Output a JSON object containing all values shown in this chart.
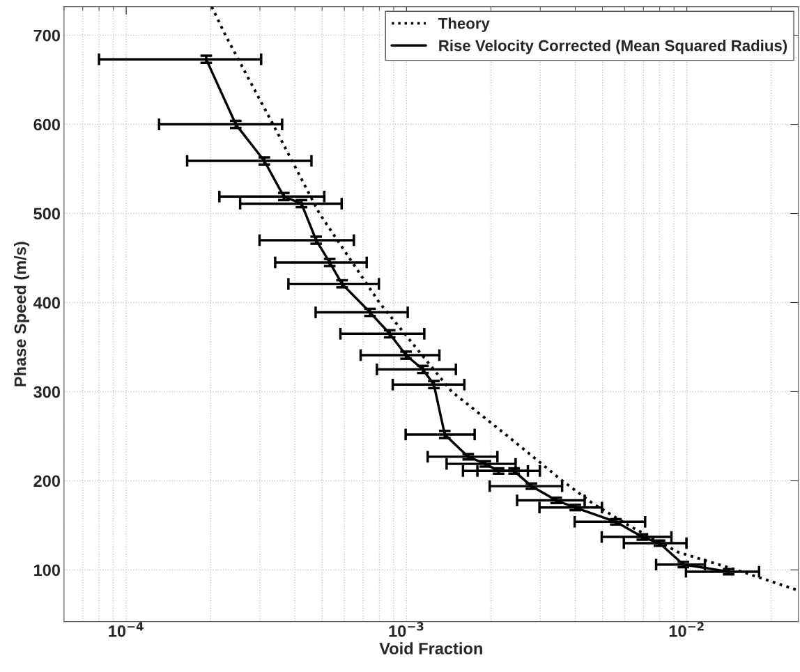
{
  "chart_data": {
    "type": "line",
    "xlabel": "Void Fraction",
    "ylabel": "Phase Speed (m/s)",
    "log": "x",
    "xlim": [
      6e-05,
      0.025
    ],
    "ylim": [
      42,
      732
    ],
    "xticks": [
      {
        "value": 0.0001,
        "label": "10$^{−4}$"
      },
      {
        "value": 0.001,
        "label": "10$^{−3}$"
      },
      {
        "value": 0.01,
        "label": "10$^{−2}$"
      }
    ],
    "yticks": [
      100,
      200,
      300,
      400,
      500,
      600,
      700
    ],
    "grid": true,
    "legend": "top right",
    "marker": "none",
    "series": [
      {
        "name": "Theory",
        "line_style": "dotted",
        "color": "#000000",
        "x": [
          0.000202,
          0.000226,
          0.000334,
          0.000489,
          0.0008,
          0.00145,
          0.0023,
          0.0036,
          0.0046,
          0.0062,
          0.0093,
          0.015,
          0.025
        ],
        "values": [
          732,
          700,
          600,
          500,
          400,
          300,
          250,
          200,
          175,
          150,
          120,
          100,
          77
        ]
      },
      {
        "name": "Rise Velocity Corrected (Mean Squared Radius)",
        "line_style": "solid",
        "color": "#000000",
        "x": [
          0.000193,
          0.000246,
          0.000311,
          0.000365,
          0.000422,
          0.000476,
          0.000532,
          0.000589,
          0.000741,
          0.000871,
          0.000996,
          0.001144,
          0.001252,
          0.001369,
          0.00166,
          0.00191,
          0.00213,
          0.00242,
          0.00279,
          0.00342,
          0.004,
          0.00558,
          0.00694,
          0.00799,
          0.00972,
          0.0141
        ],
        "values": [
          673,
          600,
          559,
          519,
          511,
          470,
          445,
          421,
          389,
          365,
          341,
          325,
          308,
          252,
          227,
          219,
          211,
          211,
          194,
          178,
          170,
          154,
          137,
          130,
          106,
          98
        ],
        "xerrors": [
          [
            8e-05,
            0.000303
          ],
          [
            0.000131,
            0.00036
          ],
          [
            0.000165,
            0.000458
          ],
          [
            0.000215,
            0.000509
          ],
          [
            0.000255,
            0.000587
          ],
          [
            0.000299,
            0.000649
          ],
          [
            0.00034,
            0.000721
          ],
          [
            0.000379,
            0.000797
          ],
          [
            0.000474,
            0.00101
          ],
          [
            0.000581,
            0.001157
          ],
          [
            0.000686,
            0.00131
          ],
          [
            0.000784,
            0.0015
          ],
          [
            0.000893,
            0.001608
          ],
          [
            0.000993,
            0.00175
          ],
          [
            0.00119,
            0.00211
          ],
          [
            0.00139,
            0.00245
          ],
          [
            0.00159,
            0.00271
          ],
          [
            0.00179,
            0.00299
          ],
          [
            0.00198,
            0.00359
          ],
          [
            0.00248,
            0.00432
          ],
          [
            0.00298,
            0.00498
          ],
          [
            0.00398,
            0.0071
          ],
          [
            0.00497,
            0.00881
          ],
          [
            0.00596,
            0.00997
          ],
          [
            0.00777,
            0.0116
          ],
          [
            0.00993,
            0.0181
          ]
        ],
        "errors": [
          4,
          4,
          4,
          4,
          4,
          4,
          4,
          4,
          4,
          4,
          4,
          4,
          4,
          4,
          3,
          3,
          3,
          3,
          3,
          3,
          3,
          3,
          3,
          3,
          3,
          3
        ]
      }
    ]
  }
}
